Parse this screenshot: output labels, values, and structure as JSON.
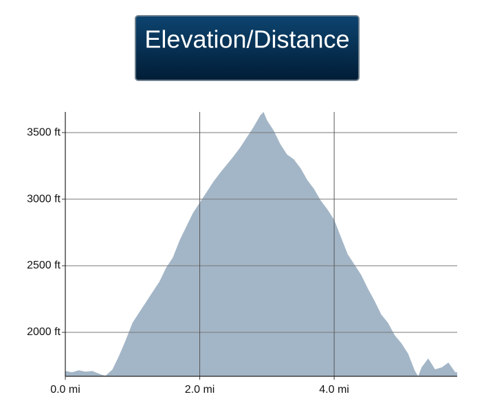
{
  "chart_data": {
    "type": "area",
    "title": "Elevation/Distance",
    "x": [
      0,
      0.1,
      0.2,
      0.3,
      0.4,
      0.5,
      0.55,
      0.6,
      0.7,
      0.8,
      0.9,
      1.0,
      1.1,
      1.2,
      1.3,
      1.4,
      1.5,
      1.6,
      1.7,
      1.8,
      1.9,
      2.0,
      2.1,
      2.2,
      2.3,
      2.4,
      2.5,
      2.6,
      2.7,
      2.8,
      2.9,
      2.95,
      3.0,
      3.1,
      3.2,
      3.3,
      3.4,
      3.5,
      3.6,
      3.7,
      3.8,
      3.9,
      4.0,
      4.1,
      4.2,
      4.3,
      4.4,
      4.5,
      4.6,
      4.7,
      4.8,
      4.9,
      5.0,
      5.1,
      5.2,
      5.25,
      5.3,
      5.4,
      5.5,
      5.6,
      5.7,
      5.8,
      5.83
    ],
    "values": [
      1710,
      1700,
      1715,
      1705,
      1710,
      1690,
      1680,
      1675,
      1720,
      1825,
      1943,
      2072,
      2150,
      2227,
      2304,
      2381,
      2485,
      2562,
      2690,
      2794,
      2897,
      2974,
      3051,
      3129,
      3196,
      3258,
      3320,
      3387,
      3464,
      3541,
      3629,
      3655,
      3593,
      3515,
      3412,
      3335,
      3299,
      3232,
      3144,
      3077,
      2990,
      2923,
      2845,
      2716,
      2588,
      2510,
      2433,
      2330,
      2237,
      2134,
      2072,
      1979,
      1918,
      1840,
      1711,
      1670,
      1737,
      1804,
      1722,
      1737,
      1773,
      1701,
      1700
    ],
    "color": "#a3b6c7",
    "xlim": [
      0,
      5.83
    ],
    "xticks": [
      {
        "value": 0,
        "label": "0.0 mi"
      },
      {
        "value": 2,
        "label": "2.0 mi"
      },
      {
        "value": 4,
        "label": "4.0 mi"
      }
    ],
    "ylim": [
      1670,
      3655
    ],
    "yticks": [
      {
        "value": 2000,
        "label": "2000 ft"
      },
      {
        "value": 2500,
        "label": "2500 ft"
      },
      {
        "value": 3000,
        "label": "3000 ft"
      },
      {
        "value": 3500,
        "label": "3500 ft"
      }
    ],
    "grid": true
  }
}
